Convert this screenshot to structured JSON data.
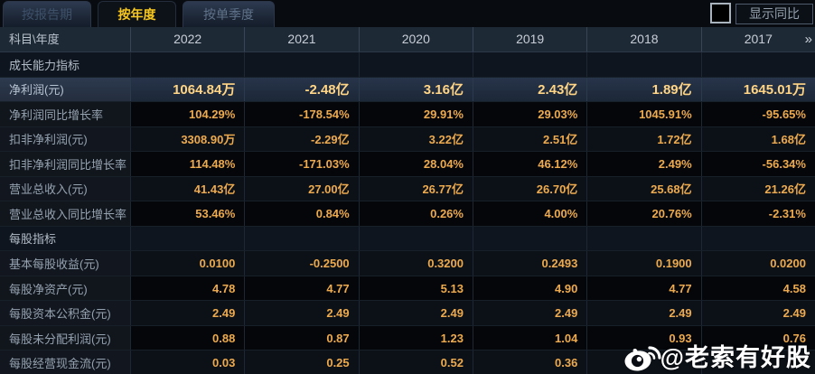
{
  "tabs": [
    {
      "label": "按报告期",
      "active": false
    },
    {
      "label": "按年度",
      "active": true
    },
    {
      "label": "按单季度",
      "active": false
    }
  ],
  "controls": {
    "show_yoy_label": "显示同比",
    "checkbox_checked": false
  },
  "table": {
    "corner_header": "科目\\年度",
    "year_columns": [
      "2022",
      "2021",
      "2020",
      "2019",
      "2018",
      "2017"
    ],
    "more_icon": "»",
    "rows": [
      {
        "type": "section",
        "label": "成长能力指标",
        "values": [
          "",
          "",
          "",
          "",
          "",
          ""
        ]
      },
      {
        "type": "highlight",
        "label": "净利润(元)",
        "values": [
          "1064.84万",
          "-2.48亿",
          "3.16亿",
          "2.43亿",
          "1.89亿",
          "1645.01万"
        ]
      },
      {
        "type": "data",
        "label": "净利润同比增长率",
        "values": [
          "104.29%",
          "-178.54%",
          "29.91%",
          "29.03%",
          "1045.91%",
          "-95.65%"
        ]
      },
      {
        "type": "data",
        "label": "扣非净利润(元)",
        "values": [
          "3308.90万",
          "-2.29亿",
          "3.22亿",
          "2.51亿",
          "1.72亿",
          "1.68亿"
        ]
      },
      {
        "type": "data",
        "label": "扣非净利润同比增长率",
        "values": [
          "114.48%",
          "-171.03%",
          "28.04%",
          "46.12%",
          "2.49%",
          "-56.34%"
        ]
      },
      {
        "type": "data",
        "label": "营业总收入(元)",
        "values": [
          "41.43亿",
          "27.00亿",
          "26.77亿",
          "26.70亿",
          "25.68亿",
          "21.26亿"
        ]
      },
      {
        "type": "data",
        "label": "营业总收入同比增长率",
        "values": [
          "53.46%",
          "0.84%",
          "0.26%",
          "4.00%",
          "20.76%",
          "-2.31%"
        ]
      },
      {
        "type": "section",
        "label": "每股指标",
        "values": [
          "",
          "",
          "",
          "",
          "",
          ""
        ]
      },
      {
        "type": "data",
        "label": "基本每股收益(元)",
        "values": [
          "0.0100",
          "-0.2500",
          "0.3200",
          "0.2493",
          "0.1900",
          "0.0200"
        ]
      },
      {
        "type": "data",
        "label": "每股净资产(元)",
        "values": [
          "4.78",
          "4.77",
          "5.13",
          "4.90",
          "4.77",
          "4.58"
        ]
      },
      {
        "type": "data",
        "label": "每股资本公积金(元)",
        "values": [
          "2.49",
          "2.49",
          "2.49",
          "2.49",
          "2.49",
          "2.49"
        ]
      },
      {
        "type": "data",
        "label": "每股未分配利润(元)",
        "values": [
          "0.88",
          "0.87",
          "1.23",
          "1.04",
          "0.93",
          "0.76"
        ]
      },
      {
        "type": "data",
        "label": "每股经营现金流(元)",
        "values": [
          "0.03",
          "0.25",
          "0.52",
          "0.36",
          "",
          ""
        ]
      }
    ]
  },
  "watermark": {
    "icon": "weibo-icon",
    "text": "@老索有好股"
  },
  "colors": {
    "accent_gold_tab": "#f8c71f",
    "value_orange": "#edaa4e",
    "highlight_value_gold": "#ffd585",
    "header_bg": "#1e2936",
    "highlight_row_bg": "#27344a",
    "watermark_white": "#ffffff"
  }
}
